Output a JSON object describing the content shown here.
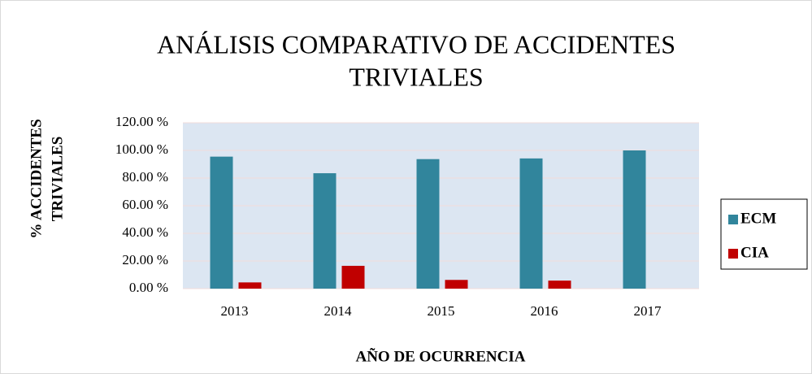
{
  "chart_data": {
    "type": "bar",
    "title": [
      "ANÁLISIS COMPARATIVO DE ACCIDENTES",
      "TRIVIALES"
    ],
    "y_label": [
      "% ACCIDENTES",
      "TRIVIALES"
    ],
    "x_label": "AÑO DE OCURRENCIA",
    "categories": [
      "2013",
      "2014",
      "2015",
      "2016",
      "2017"
    ],
    "series": [
      {
        "name": "ECM",
        "color": "#31859c",
        "values": [
          95.5,
          83.5,
          93.7,
          94.2,
          100
        ]
      },
      {
        "name": "CIA",
        "color": "#c00000",
        "values": [
          4.5,
          16.5,
          6.3,
          5.8,
          0
        ]
      }
    ],
    "ylim": [
      0,
      120
    ],
    "yticks": [
      {
        "value": 0,
        "label": "0.00 %"
      },
      {
        "value": 20,
        "label": "20.00 %"
      },
      {
        "value": 40,
        "label": "40.00 %"
      },
      {
        "value": 60,
        "label": "60.00 %"
      },
      {
        "value": 80,
        "label": "80.00 %"
      },
      {
        "value": 100,
        "label": "100.00 %"
      },
      {
        "value": 120,
        "label": "120.00 %"
      }
    ],
    "grid": true,
    "legend": "right"
  }
}
